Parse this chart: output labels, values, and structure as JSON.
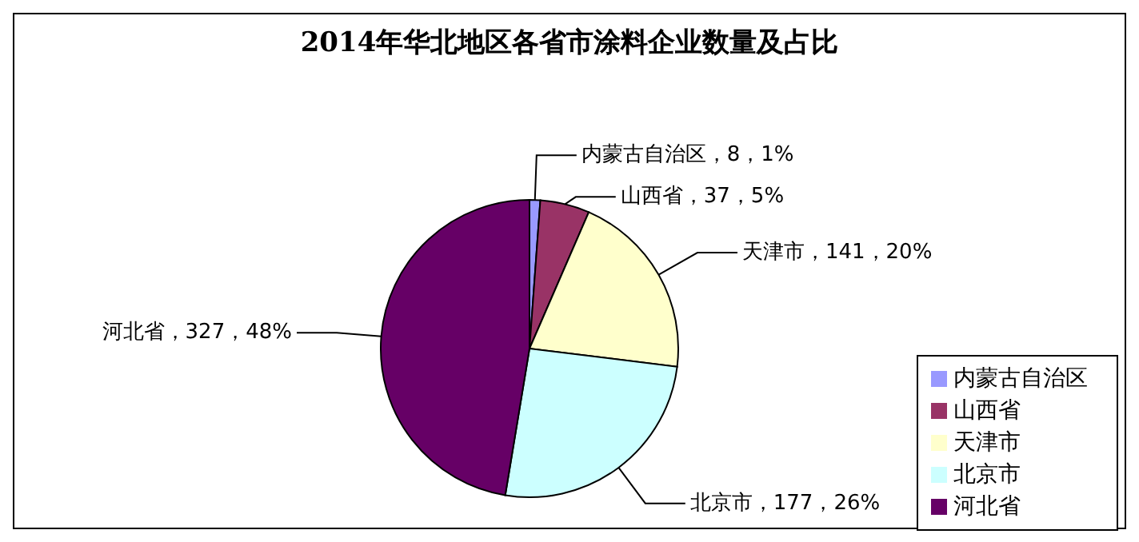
{
  "chart_data": {
    "type": "pie",
    "title": "2014年华北地区各省市涂料企业数量及占比",
    "categories": [
      "内蒙古自治区",
      "山西省",
      "天津市",
      "北京市",
      "河北省"
    ],
    "values": [
      8,
      37,
      141,
      177,
      327
    ],
    "colors": [
      "#9999ff",
      "#993366",
      "#ffffcc",
      "#ccffff",
      "#660066"
    ],
    "value_labels": [
      "内蒙古自治区，8，1%",
      "山西省，37，5%",
      "天津市，141，20%",
      "北京市，177，26%",
      "河北省，327，48%"
    ],
    "legend": "bottom right"
  }
}
